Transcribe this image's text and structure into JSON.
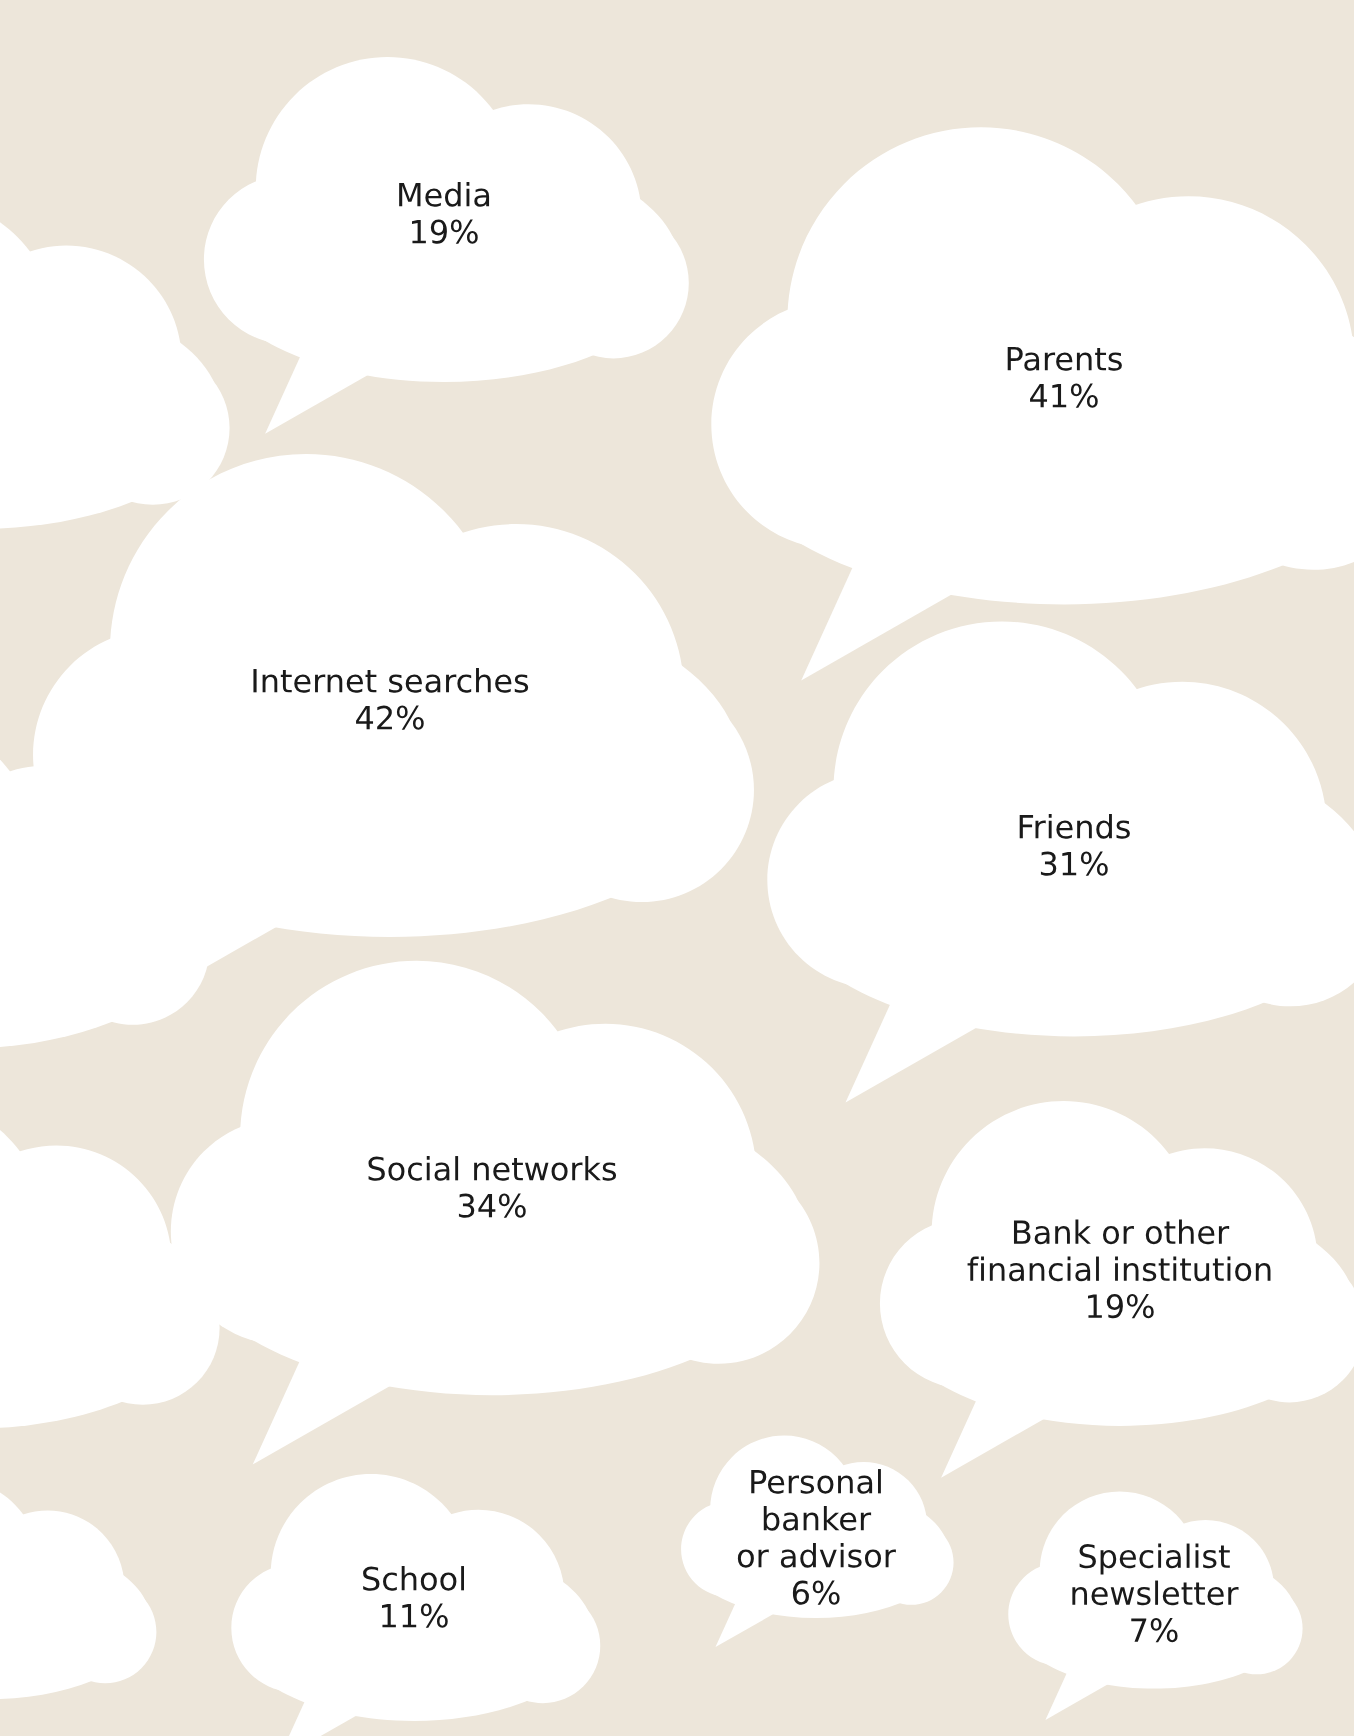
{
  "chart_data": {
    "type": "other",
    "categories": [
      "Media",
      "Parents",
      "Internet searches",
      "Friends",
      "Social networks",
      "Bank or other\nfinancial institution",
      "School",
      "Personal\nbanker\nor advisor",
      "Specialist\nnewsletter"
    ],
    "values": [
      19,
      41,
      42,
      31,
      34,
      19,
      11,
      6,
      7
    ],
    "value_labels": [
      "19%",
      "41%",
      "42%",
      "31%",
      "34%",
      "19%",
      "11%",
      "6%",
      "7%"
    ],
    "color": "#ffffff"
  }
}
